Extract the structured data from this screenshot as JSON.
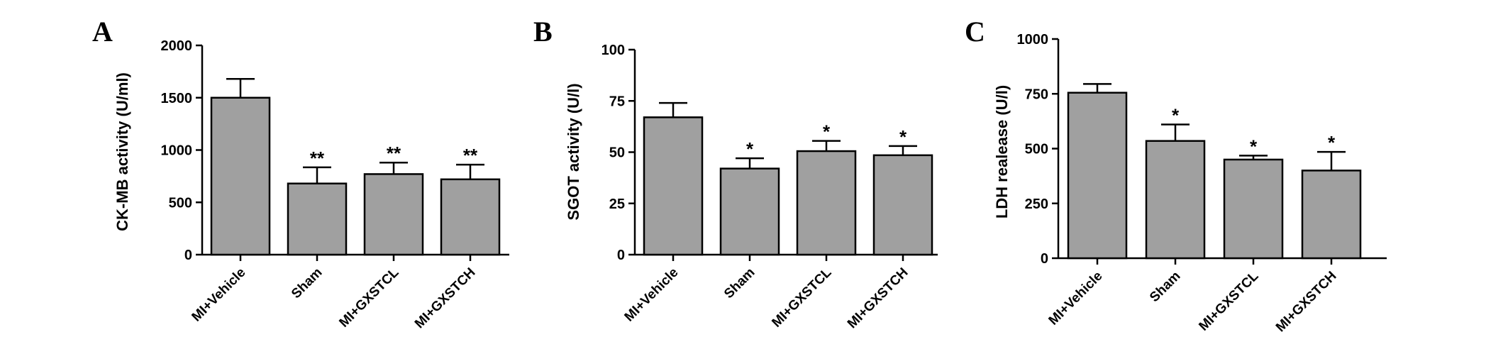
{
  "chart_data": [
    {
      "type": "bar",
      "panel": "A",
      "ylabel": "CK-MB activity (U/ml)",
      "ylim": [
        0,
        2000
      ],
      "yticks": [
        0,
        500,
        1000,
        1500,
        2000
      ],
      "categories": [
        "MI+Vehicle",
        "Sham",
        "MI+GXSTCL",
        "MI+GXSTCH"
      ],
      "values": [
        1500,
        680,
        770,
        720
      ],
      "errors": [
        180,
        155,
        110,
        140
      ],
      "significance": [
        "",
        "**",
        "**",
        "**"
      ],
      "bar_color": "#a0a0a0"
    },
    {
      "type": "bar",
      "panel": "B",
      "ylabel": "SGOT activity (U/l)",
      "ylim": [
        0,
        100
      ],
      "yticks": [
        0,
        25,
        50,
        75,
        100
      ],
      "categories": [
        "MI+Vehicle",
        "Sham",
        "MI+GXSTCL",
        "MI+GXSTCH"
      ],
      "values": [
        67,
        42,
        50.5,
        48.5
      ],
      "errors": [
        7,
        5,
        5,
        4.5
      ],
      "significance": [
        "",
        "*",
        "*",
        "*"
      ],
      "bar_color": "#a0a0a0"
    },
    {
      "type": "bar",
      "panel": "C",
      "ylabel": "LDH realease (U/l)",
      "ylim": [
        0,
        1000
      ],
      "yticks": [
        0,
        250,
        500,
        750,
        1000
      ],
      "categories": [
        "MI+Vehicle",
        "Sham",
        "MI+GXSTCL",
        "MI+GXSTCH"
      ],
      "values": [
        755,
        535,
        450,
        400
      ],
      "errors": [
        40,
        75,
        18,
        85
      ],
      "significance": [
        "",
        "*",
        "*",
        "*"
      ],
      "bar_color": "#a0a0a0"
    }
  ]
}
